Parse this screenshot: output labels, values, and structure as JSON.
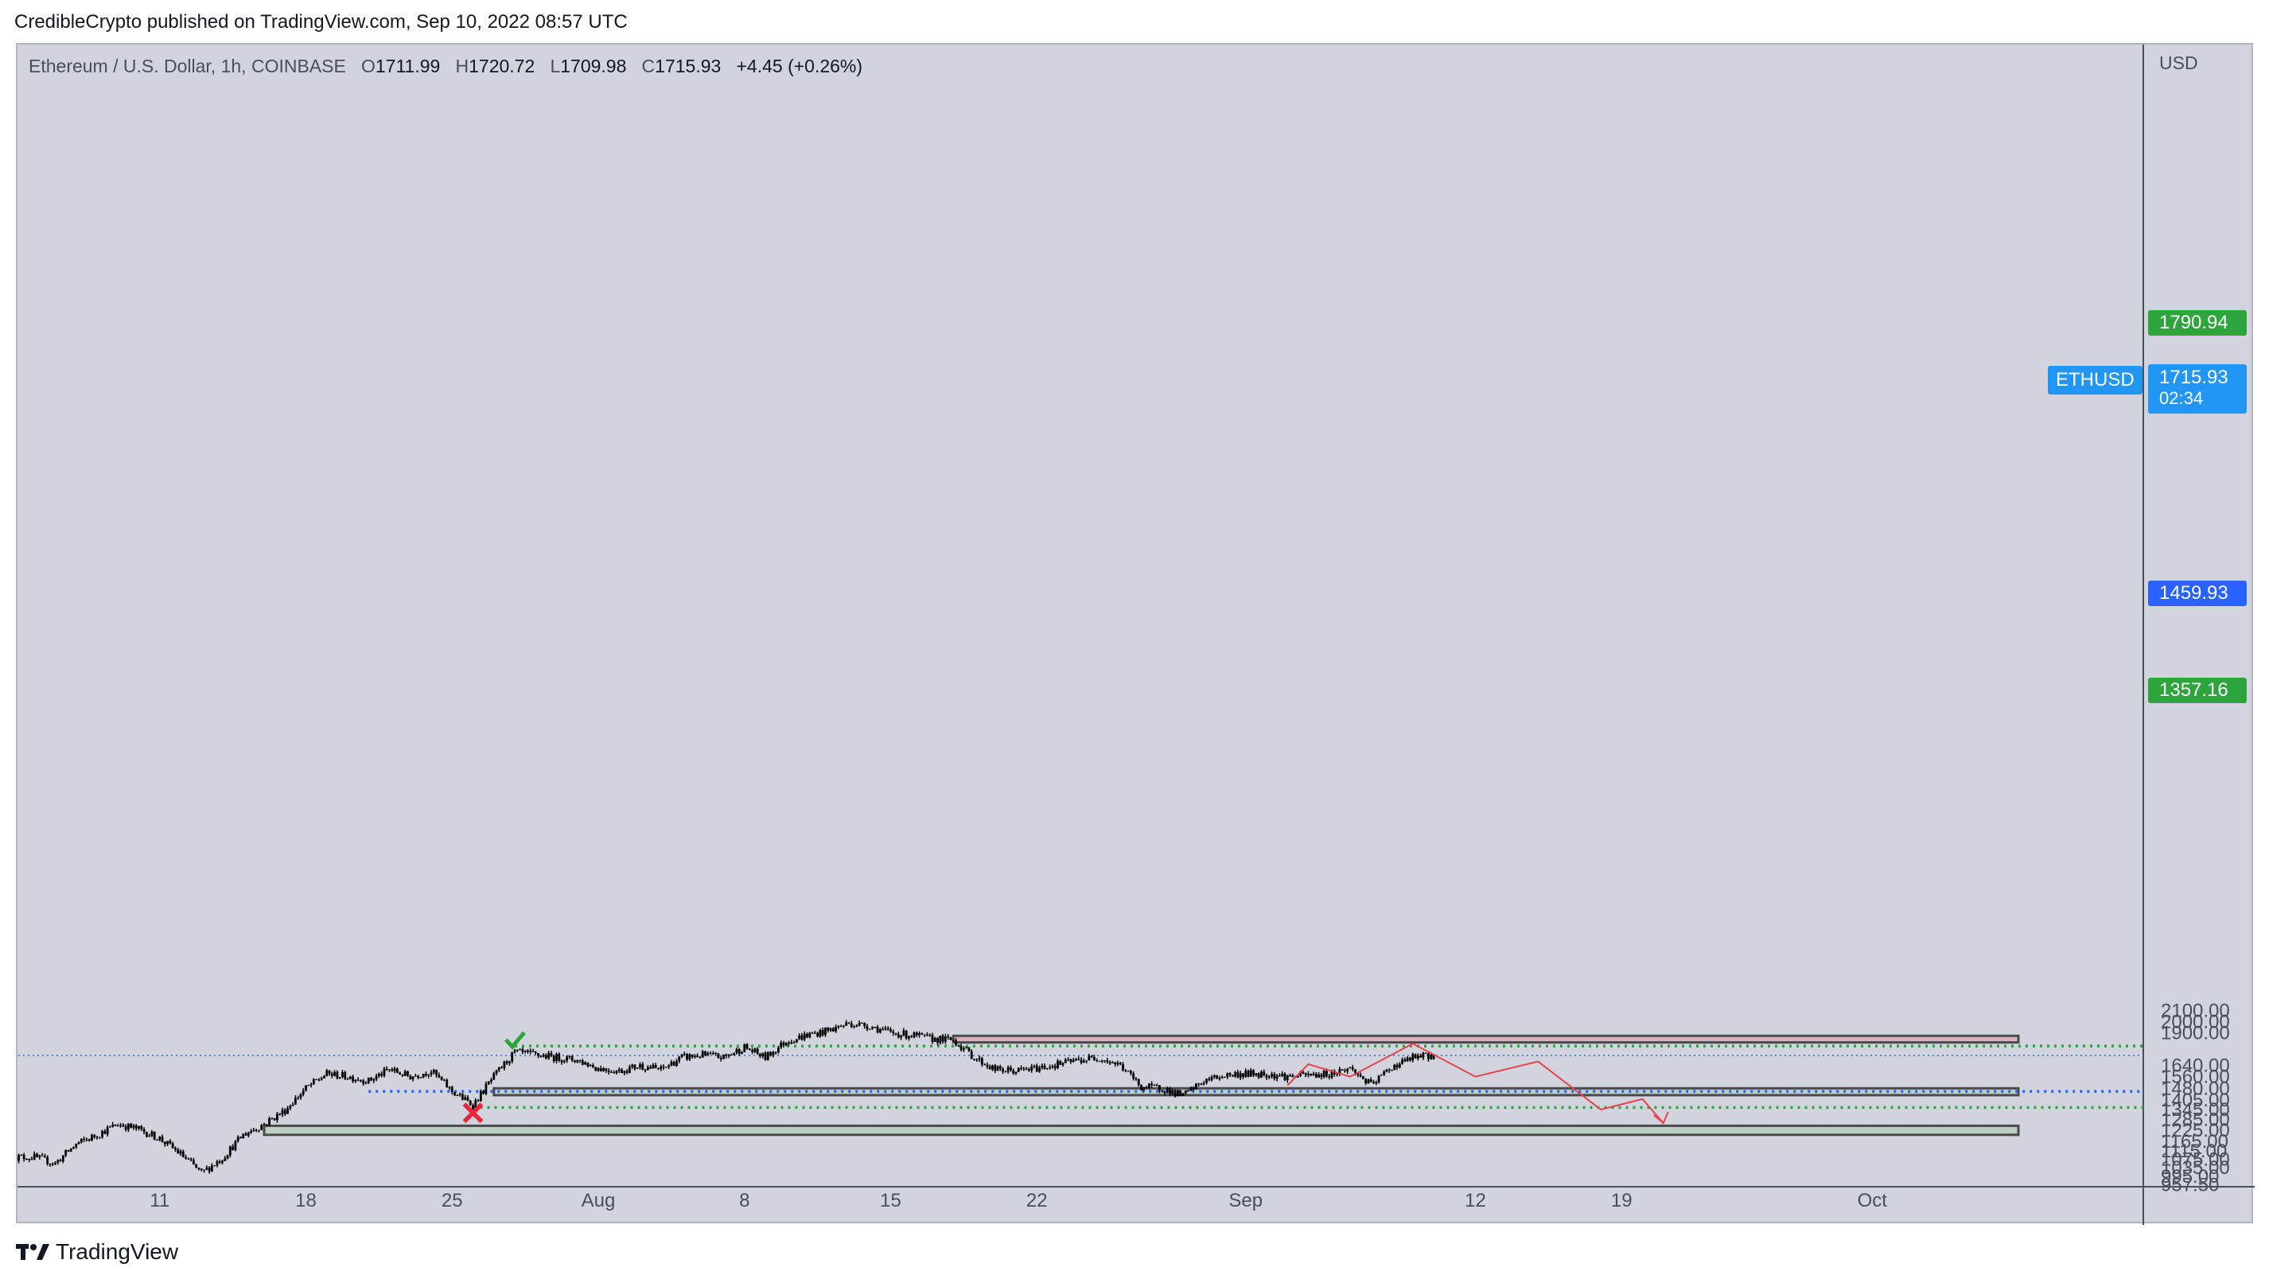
{
  "header": {
    "published_by": "CredibleCrypto published on TradingView.com, Sep 10, 2022 08:57 UTC"
  },
  "legend": {
    "symbol": "Ethereum / U.S. Dollar, 1h, COINBASE",
    "open_label": "O",
    "open": "1711.99",
    "high_label": "H",
    "high": "1720.72",
    "low_label": "L",
    "low": "1709.98",
    "close_label": "C",
    "close": "1715.93",
    "change": "+4.45 (+0.26%)"
  },
  "axis": {
    "currency": "USD"
  },
  "tags": {
    "symbol": "ETHUSD",
    "last_price": "1715.93",
    "countdown": "02:34",
    "resistance_line": "1790.94",
    "support_line": "1459.93",
    "invalidation_line": "1357.16"
  },
  "colors": {
    "background": "#d1d4dc",
    "candle": "#000000",
    "supply_zone": "#d8b3bf",
    "demand_zone": "#bdcec4",
    "projection": "#e8404f",
    "green_level": "#2ea43c",
    "blue_level": "#2962ff",
    "last_price": "#2196f3"
  },
  "footer": {
    "brand": "TradingView"
  },
  "chart_data": {
    "type": "candlestick",
    "instrument": "ETHUSD",
    "timeframe": "1h",
    "exchange": "COINBASE",
    "ylim": [
      940,
      2160
    ],
    "y_ticks": [
      "2100.00",
      "2000.00",
      "1900.00",
      "1640.00",
      "1560.00",
      "1480.00",
      "1405.00",
      "1345.00",
      "1285.00",
      "1225.00",
      "1165.00",
      "1115.00",
      "1075.00",
      "1035.00",
      "995.00",
      "957.50"
    ],
    "x_ticks": [
      "11",
      "18",
      "25",
      "Aug",
      "8",
      "15",
      "22",
      "Sep",
      "12",
      "19",
      "Oct"
    ],
    "price_path": [
      {
        "x": "2022-07-05",
        "y": 1085
      },
      {
        "x": "2022-07-06",
        "y": 1055
      },
      {
        "x": "2022-07-07",
        "y": 1150
      },
      {
        "x": "2022-07-08",
        "y": 1200
      },
      {
        "x": "2022-07-09",
        "y": 1260
      },
      {
        "x": "2022-07-10",
        "y": 1230
      },
      {
        "x": "2022-07-11",
        "y": 1180
      },
      {
        "x": "2022-07-12",
        "y": 1100
      },
      {
        "x": "2022-07-13",
        "y": 1010
      },
      {
        "x": "2022-07-14",
        "y": 1080
      },
      {
        "x": "2022-07-15",
        "y": 1200
      },
      {
        "x": "2022-07-16",
        "y": 1260
      },
      {
        "x": "2022-07-17",
        "y": 1340
      },
      {
        "x": "2022-07-18",
        "y": 1480
      },
      {
        "x": "2022-07-19",
        "y": 1580
      },
      {
        "x": "2022-07-20",
        "y": 1560
      },
      {
        "x": "2022-07-21",
        "y": 1530
      },
      {
        "x": "2022-07-22",
        "y": 1610
      },
      {
        "x": "2022-07-23",
        "y": 1560
      },
      {
        "x": "2022-07-24",
        "y": 1600
      },
      {
        "x": "2022-07-25",
        "y": 1460
      },
      {
        "x": "2022-07-26",
        "y": 1370
      },
      {
        "x": "2022-07-27",
        "y": 1560
      },
      {
        "x": "2022-07-28",
        "y": 1740
      },
      {
        "x": "2022-07-29",
        "y": 1720
      },
      {
        "x": "2022-07-30",
        "y": 1700
      },
      {
        "x": "2022-07-31",
        "y": 1680
      },
      {
        "x": "2022-08-01",
        "y": 1620
      },
      {
        "x": "2022-08-02",
        "y": 1600
      },
      {
        "x": "2022-08-03",
        "y": 1640
      },
      {
        "x": "2022-08-04",
        "y": 1610
      },
      {
        "x": "2022-08-05",
        "y": 1700
      },
      {
        "x": "2022-08-06",
        "y": 1720
      },
      {
        "x": "2022-08-07",
        "y": 1700
      },
      {
        "x": "2022-08-08",
        "y": 1780
      },
      {
        "x": "2022-08-09",
        "y": 1700
      },
      {
        "x": "2022-08-10",
        "y": 1830
      },
      {
        "x": "2022-08-11",
        "y": 1880
      },
      {
        "x": "2022-08-12",
        "y": 1920
      },
      {
        "x": "2022-08-13",
        "y": 1985
      },
      {
        "x": "2022-08-14",
        "y": 1960
      },
      {
        "x": "2022-08-15",
        "y": 1900
      },
      {
        "x": "2022-08-16",
        "y": 1880
      },
      {
        "x": "2022-08-17",
        "y": 1850
      },
      {
        "x": "2022-08-18",
        "y": 1840
      },
      {
        "x": "2022-08-19",
        "y": 1700
      },
      {
        "x": "2022-08-20",
        "y": 1610
      },
      {
        "x": "2022-08-21",
        "y": 1600
      },
      {
        "x": "2022-08-22",
        "y": 1620
      },
      {
        "x": "2022-08-23",
        "y": 1650
      },
      {
        "x": "2022-08-24",
        "y": 1680
      },
      {
        "x": "2022-08-25",
        "y": 1700
      },
      {
        "x": "2022-08-26",
        "y": 1640
      },
      {
        "x": "2022-08-27",
        "y": 1490
      },
      {
        "x": "2022-08-28",
        "y": 1480
      },
      {
        "x": "2022-08-29",
        "y": 1430
      },
      {
        "x": "2022-08-30",
        "y": 1530
      },
      {
        "x": "2022-08-31",
        "y": 1570
      },
      {
        "x": "2022-09-01",
        "y": 1580
      },
      {
        "x": "2022-09-02",
        "y": 1580
      },
      {
        "x": "2022-09-03",
        "y": 1560
      },
      {
        "x": "2022-09-04",
        "y": 1570
      },
      {
        "x": "2022-09-05",
        "y": 1580
      },
      {
        "x": "2022-09-06",
        "y": 1620
      },
      {
        "x": "2022-09-07",
        "y": 1500
      },
      {
        "x": "2022-09-08",
        "y": 1630
      },
      {
        "x": "2022-09-09",
        "y": 1700
      },
      {
        "x": "2022-09-10",
        "y": 1716
      }
    ],
    "zones": [
      {
        "kind": "supply",
        "from": "2022-08-18",
        "to": "2022-10-08",
        "low": 1820,
        "high": 1875
      },
      {
        "kind": "demand",
        "from": "2022-07-27",
        "to": "2022-10-08",
        "low": 1435,
        "high": 1480
      },
      {
        "kind": "demand",
        "from": "2022-07-16",
        "to": "2022-10-08",
        "low": 1200,
        "high": 1250
      }
    ],
    "levels": [
      {
        "value": 1790.94,
        "style": "dotted",
        "color": "green",
        "from": "2022-07-28"
      },
      {
        "value": 1459.93,
        "style": "dotted",
        "color": "blue",
        "from": "2022-07-21"
      },
      {
        "value": 1357.16,
        "style": "dotted",
        "color": "green",
        "from": "2022-07-26"
      },
      {
        "value": 1715.93,
        "style": "dotted-thin",
        "color": "blue",
        "from": "2022-07-04"
      }
    ],
    "markers": [
      {
        "type": "check",
        "x": "2022-07-28",
        "y": 1830
      },
      {
        "type": "cross",
        "x": "2022-07-26",
        "y": 1325
      }
    ],
    "projection": [
      {
        "x": "2022-09-03",
        "y": 1500
      },
      {
        "x": "2022-09-04",
        "y": 1650
      },
      {
        "x": "2022-09-06",
        "y": 1560
      },
      {
        "x": "2022-09-09",
        "y": 1810
      },
      {
        "x": "2022-09-12",
        "y": 1560
      },
      {
        "x": "2022-09-15",
        "y": 1670
      },
      {
        "x": "2022-09-18",
        "y": 1345
      },
      {
        "x": "2022-09-20",
        "y": 1410
      },
      {
        "x": "2022-09-21",
        "y": 1265
      }
    ]
  }
}
